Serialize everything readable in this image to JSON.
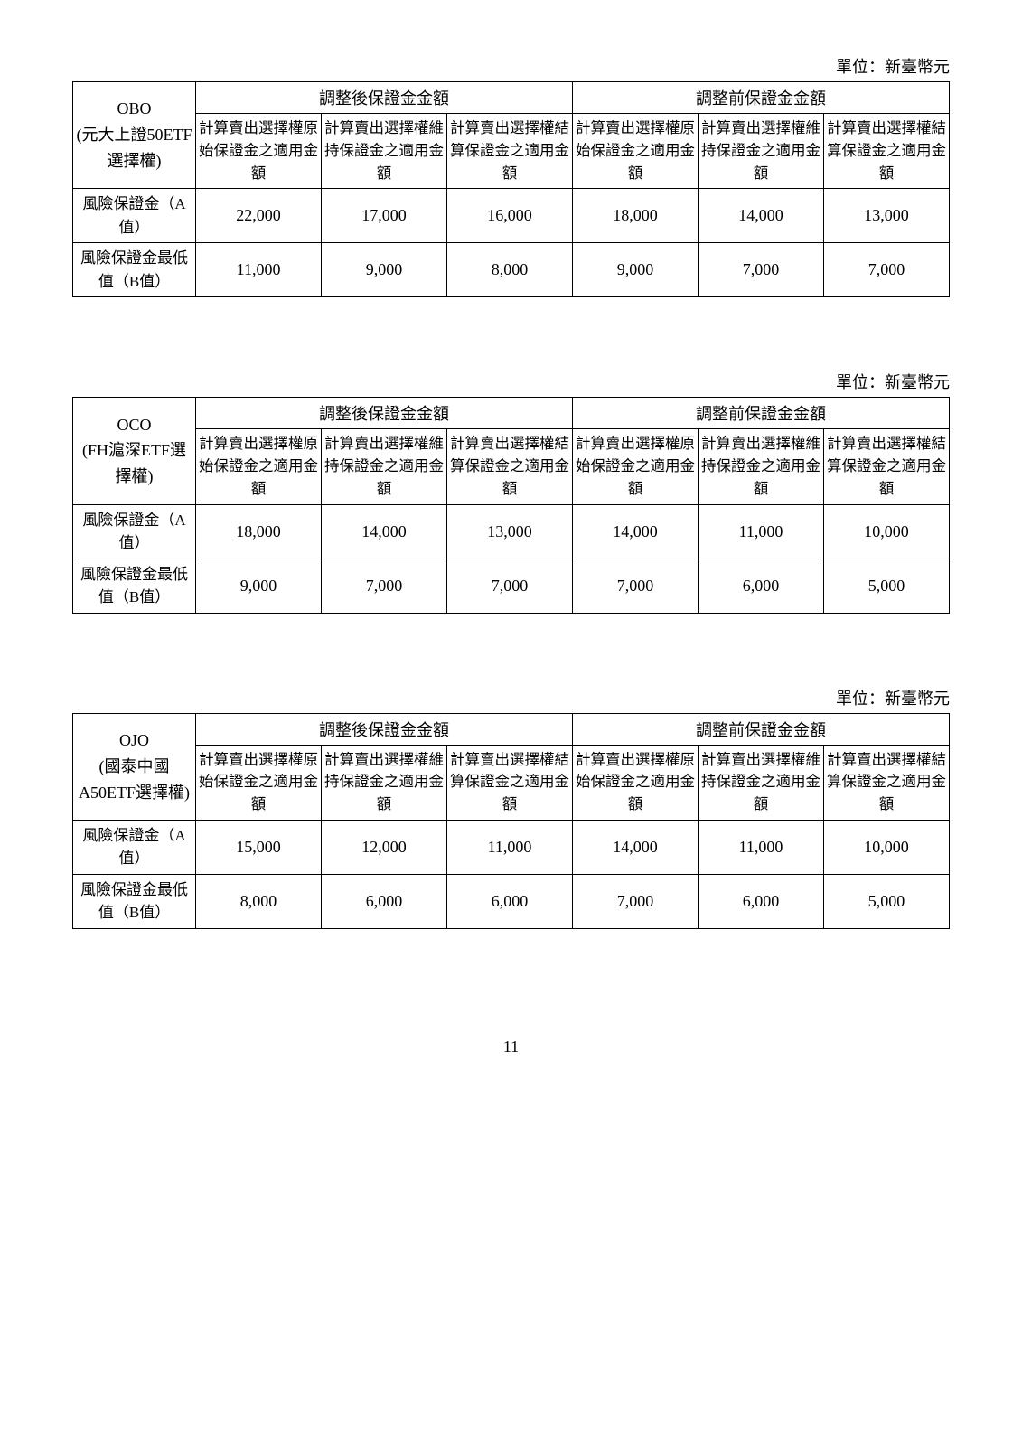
{
  "unit_label": "單位：新臺幣元",
  "group_after": "調整後保證金金額",
  "group_before": "調整前保證金金額",
  "col_headers": [
    "計算賣出選擇權原始保證金之適用金額",
    "計算賣出選擇權維持保證金之適用金額",
    "計算賣出選擇權結算保證金之適用金額",
    "計算賣出選擇權原始保證金之適用金額",
    "計算賣出選擇權維持保證金之適用金額",
    "計算賣出選擇權結算保證金之適用金額"
  ],
  "row_labels": {
    "a": "風險保證金（A值）",
    "b": "風險保證金最低值（B值）"
  },
  "tables": [
    {
      "product": "OBO\n(元大上證50ETF選擇權)",
      "rows": {
        "a": [
          "22,000",
          "17,000",
          "16,000",
          "18,000",
          "14,000",
          "13,000"
        ],
        "b": [
          "11,000",
          "9,000",
          "8,000",
          "9,000",
          "7,000",
          "7,000"
        ]
      }
    },
    {
      "product": "OCO\n(FH滬深ETF選擇權)",
      "rows": {
        "a": [
          "18,000",
          "14,000",
          "13,000",
          "14,000",
          "11,000",
          "10,000"
        ],
        "b": [
          "9,000",
          "7,000",
          "7,000",
          "7,000",
          "6,000",
          "5,000"
        ]
      }
    },
    {
      "product": "OJO\n(國泰中國A50ETF選擇權)",
      "rows": {
        "a": [
          "15,000",
          "12,000",
          "11,000",
          "14,000",
          "11,000",
          "10,000"
        ],
        "b": [
          "8,000",
          "6,000",
          "6,000",
          "7,000",
          "6,000",
          "5,000"
        ]
      }
    }
  ],
  "page_number": "11"
}
